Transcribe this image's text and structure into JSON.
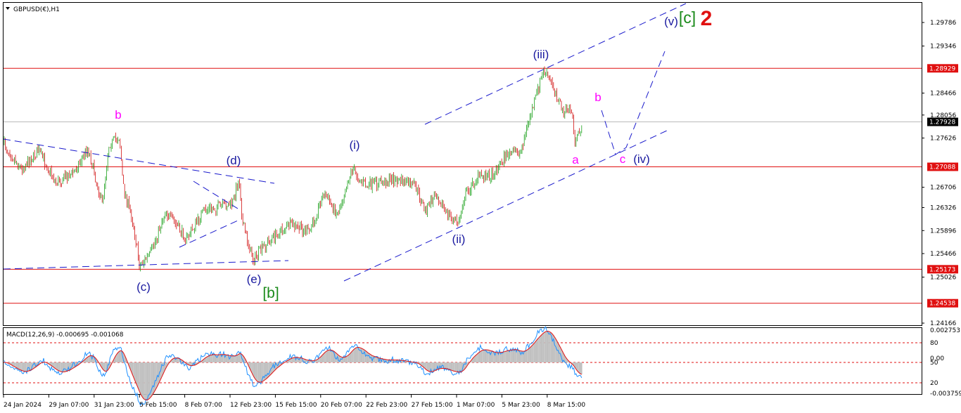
{
  "window": {
    "symbol": "GBPUSD(€),H1"
  },
  "price_axis": {
    "ylim": [
      1.24127,
      1.30167
    ],
    "ticks": [
      1.29786,
      1.29346,
      1.28466,
      1.28056,
      1.27626,
      1.26706,
      1.26326,
      1.25896,
      1.25466,
      1.25026,
      1.24166
    ],
    "levels": [
      1.28929,
      1.27088,
      1.25173,
      1.24538
    ],
    "current": 1.27928
  },
  "time_axis": [
    "24 Jan 2024",
    "29 Jan 07:00",
    "31 Jan 23:00",
    "5 Feb 15:00",
    "8 Feb 07:00",
    "12 Feb 23:00",
    "15 Feb 15:00",
    "20 Feb 07:00",
    "22 Feb 23:00",
    "27 Feb 15:00",
    "1 Mar 07:00",
    "5 Mar 23:00",
    "8 Mar 15:00"
  ],
  "wave_labels": [
    "b",
    "(c)",
    "(d)",
    "(e)",
    "[b]",
    "(i)",
    "(ii)",
    "(iii)",
    "a",
    "b",
    "c",
    "(iv)",
    "(v)",
    "[c]",
    "2"
  ],
  "macd": {
    "title": "MACD(12,26,9) -0.000695 -0.001068",
    "scale": [
      "0.002753",
      "80",
      "0.00",
      "50",
      "20",
      "-0.003759"
    ]
  }
}
